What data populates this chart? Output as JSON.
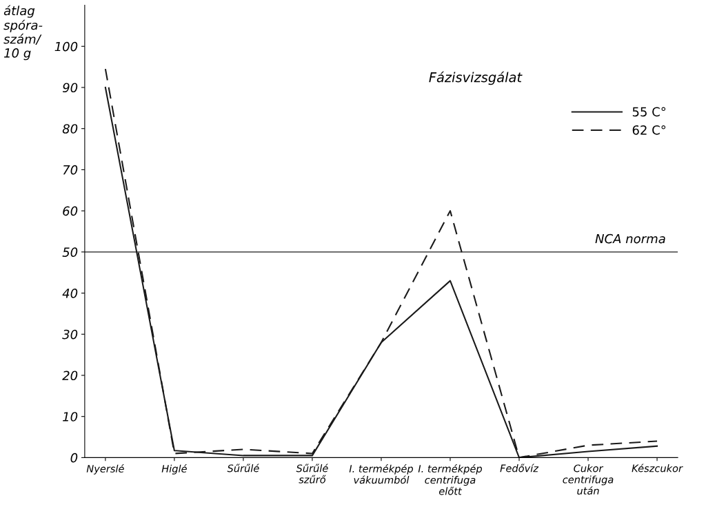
{
  "chart_data": {
    "type": "line",
    "ylabel": "átlag\nspóra-\nszám/\n10 g",
    "categories": [
      "Nyerslé",
      "Higlé",
      "Sűrűlé",
      "Sűrűlé\nszűrő",
      "I. termékpép\nvákuumból",
      "I. termékpép\ncentrifuga\nelőtt",
      "Fedővíz",
      "Cukor\ncentrifuga\nután",
      "Készcukor"
    ],
    "series": [
      {
        "name": "55 C°",
        "color": "#1a1a1a",
        "line_style": "solid",
        "values": [
          90,
          1.7,
          0.5,
          0.5,
          28,
          43,
          0,
          1.5,
          2.8
        ]
      },
      {
        "name": "62 C°",
        "color": "#1a1a1a",
        "line_style": "dashed",
        "values": [
          94.5,
          1,
          2,
          1,
          28,
          60,
          0,
          3,
          4
        ]
      }
    ],
    "ylim": [
      0,
      110
    ],
    "yticks": [
      0,
      10,
      20,
      30,
      40,
      50,
      60,
      70,
      80,
      90,
      100
    ],
    "ref_lines": [
      {
        "axis": "y",
        "value": 50,
        "label": "NCA norma",
        "color": "#1a1a1a",
        "line_style": "solid"
      }
    ],
    "annotations": [
      "Fázisvizsgálat"
    ],
    "legend": "top right",
    "grid": false,
    "marker": "none"
  }
}
